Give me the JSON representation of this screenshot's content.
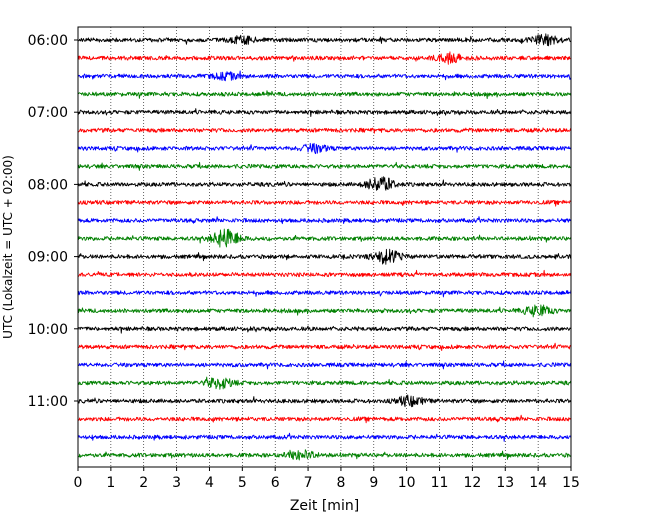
{
  "chart_data": {
    "type": "line",
    "title": "",
    "xlabel": "Zeit  [min]",
    "ylabel": "UTC (Lokalzeit = UTC + 02:00)",
    "xlim": [
      0,
      15
    ],
    "x_ticks": [
      0,
      1,
      2,
      3,
      4,
      5,
      6,
      7,
      8,
      9,
      10,
      11,
      12,
      13,
      14,
      15
    ],
    "y_tick_labels": [
      "06:00",
      "07:00",
      "08:00",
      "09:00",
      "10:00",
      "11:00"
    ],
    "row_interval_minutes": 15,
    "grid": "vertical dotted at each minute",
    "trace_colors": [
      "#000000",
      "#ff0000",
      "#0000ff",
      "#008000"
    ],
    "rows": [
      {
        "start": "06:00",
        "color": "#000000",
        "events": [
          {
            "t": 5.0,
            "amp": 0.45
          },
          {
            "t": 14.2,
            "amp": 0.65
          }
        ]
      },
      {
        "start": "06:15",
        "color": "#ff0000",
        "events": [
          {
            "t": 11.3,
            "amp": 0.6
          }
        ]
      },
      {
        "start": "06:30",
        "color": "#0000ff",
        "events": [
          {
            "t": 4.5,
            "amp": 0.4
          }
        ]
      },
      {
        "start": "06:45",
        "color": "#008000",
        "events": []
      },
      {
        "start": "07:00",
        "color": "#000000",
        "events": []
      },
      {
        "start": "07:15",
        "color": "#ff0000",
        "events": []
      },
      {
        "start": "07:30",
        "color": "#0000ff",
        "events": [
          {
            "t": 7.2,
            "amp": 0.5
          }
        ]
      },
      {
        "start": "07:45",
        "color": "#008000",
        "events": []
      },
      {
        "start": "08:00",
        "color": "#000000",
        "events": [
          {
            "t": 9.2,
            "amp": 1.0
          }
        ]
      },
      {
        "start": "08:15",
        "color": "#ff0000",
        "events": []
      },
      {
        "start": "08:30",
        "color": "#0000ff",
        "events": []
      },
      {
        "start": "08:45",
        "color": "#008000",
        "events": [
          {
            "t": 4.5,
            "amp": 1.2
          }
        ]
      },
      {
        "start": "09:00",
        "color": "#000000",
        "events": [
          {
            "t": 9.4,
            "amp": 0.9
          }
        ]
      },
      {
        "start": "09:15",
        "color": "#ff0000",
        "events": []
      },
      {
        "start": "09:30",
        "color": "#0000ff",
        "events": []
      },
      {
        "start": "09:45",
        "color": "#008000",
        "events": [
          {
            "t": 14.0,
            "amp": 0.7
          }
        ]
      },
      {
        "start": "10:00",
        "color": "#000000",
        "events": []
      },
      {
        "start": "10:15",
        "color": "#ff0000",
        "events": []
      },
      {
        "start": "10:30",
        "color": "#0000ff",
        "events": []
      },
      {
        "start": "10:45",
        "color": "#008000",
        "events": [
          {
            "t": 4.3,
            "amp": 0.7
          }
        ]
      },
      {
        "start": "11:00",
        "color": "#000000",
        "events": [
          {
            "t": 10.1,
            "amp": 0.6
          }
        ]
      },
      {
        "start": "11:15",
        "color": "#ff0000",
        "events": []
      },
      {
        "start": "11:30",
        "color": "#0000ff",
        "events": []
      },
      {
        "start": "11:45",
        "color": "#008000",
        "events": [
          {
            "t": 6.8,
            "amp": 0.6
          }
        ]
      }
    ]
  }
}
